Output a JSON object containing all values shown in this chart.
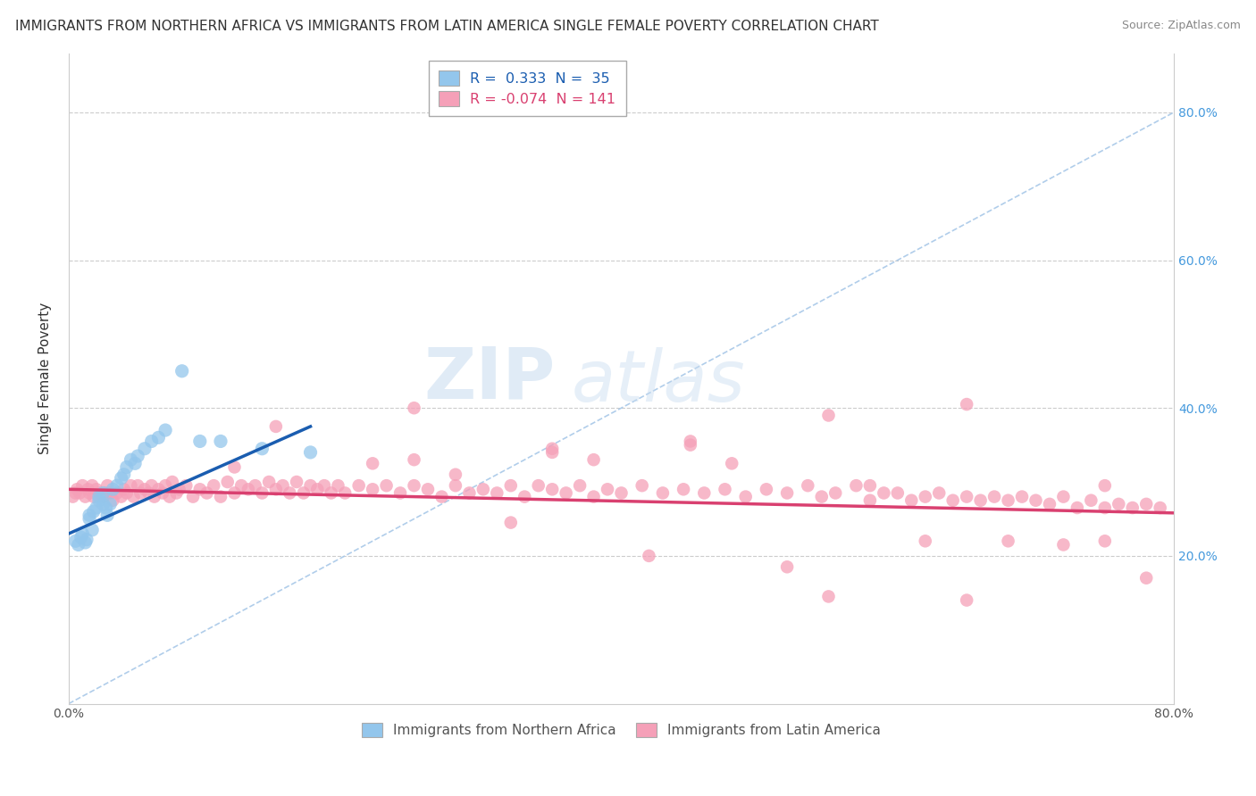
{
  "title": "IMMIGRANTS FROM NORTHERN AFRICA VS IMMIGRANTS FROM LATIN AMERICA SINGLE FEMALE POVERTY CORRELATION CHART",
  "source": "Source: ZipAtlas.com",
  "ylabel": "Single Female Poverty",
  "xlim": [
    0.0,
    0.8
  ],
  "ylim": [
    0.0,
    0.88
  ],
  "blue_color": "#93C6EC",
  "pink_color": "#F5A0B8",
  "blue_line_color": "#1A5DB0",
  "pink_line_color": "#D94070",
  "dashed_color": "#A8C8E8",
  "watermark_zip": "ZIP",
  "watermark_atlas": "atlas",
  "title_fontsize": 11,
  "source_fontsize": 9,
  "blue_x": [
    0.005,
    0.007,
    0.009,
    0.01,
    0.012,
    0.013,
    0.015,
    0.015,
    0.017,
    0.018,
    0.02,
    0.022,
    0.022,
    0.025,
    0.025,
    0.027,
    0.028,
    0.03,
    0.032,
    0.035,
    0.038,
    0.04,
    0.042,
    0.045,
    0.048,
    0.05,
    0.055,
    0.06,
    0.065,
    0.07,
    0.082,
    0.095,
    0.11,
    0.14,
    0.175
  ],
  "blue_y": [
    0.22,
    0.215,
    0.225,
    0.23,
    0.218,
    0.222,
    0.25,
    0.255,
    0.235,
    0.26,
    0.265,
    0.275,
    0.28,
    0.285,
    0.27,
    0.265,
    0.255,
    0.27,
    0.29,
    0.295,
    0.305,
    0.31,
    0.32,
    0.33,
    0.325,
    0.335,
    0.345,
    0.355,
    0.36,
    0.37,
    0.45,
    0.355,
    0.355,
    0.345,
    0.34
  ],
  "blue_trendline_x": [
    0.0,
    0.175
  ],
  "blue_trendline_y": [
    0.23,
    0.375
  ],
  "pink_trendline_x": [
    0.0,
    0.8
  ],
  "pink_trendline_y": [
    0.29,
    0.258
  ],
  "pink_x": [
    0.003,
    0.005,
    0.006,
    0.008,
    0.01,
    0.012,
    0.014,
    0.015,
    0.017,
    0.018,
    0.02,
    0.022,
    0.025,
    0.027,
    0.028,
    0.03,
    0.032,
    0.035,
    0.038,
    0.04,
    0.042,
    0.045,
    0.047,
    0.05,
    0.052,
    0.055,
    0.058,
    0.06,
    0.062,
    0.065,
    0.068,
    0.07,
    0.073,
    0.075,
    0.078,
    0.08,
    0.085,
    0.09,
    0.095,
    0.1,
    0.105,
    0.11,
    0.115,
    0.12,
    0.125,
    0.13,
    0.135,
    0.14,
    0.145,
    0.15,
    0.155,
    0.16,
    0.165,
    0.17,
    0.175,
    0.18,
    0.185,
    0.19,
    0.195,
    0.2,
    0.21,
    0.22,
    0.23,
    0.24,
    0.25,
    0.26,
    0.27,
    0.28,
    0.29,
    0.3,
    0.31,
    0.32,
    0.33,
    0.34,
    0.35,
    0.36,
    0.37,
    0.38,
    0.39,
    0.4,
    0.415,
    0.43,
    0.445,
    0.46,
    0.475,
    0.49,
    0.505,
    0.52,
    0.535,
    0.545,
    0.555,
    0.57,
    0.58,
    0.59,
    0.6,
    0.61,
    0.62,
    0.63,
    0.64,
    0.65,
    0.66,
    0.67,
    0.68,
    0.69,
    0.7,
    0.71,
    0.72,
    0.73,
    0.74,
    0.75,
    0.76,
    0.77,
    0.78,
    0.79,
    0.25,
    0.35,
    0.45,
    0.55,
    0.65,
    0.75,
    0.28,
    0.38,
    0.48,
    0.58,
    0.68,
    0.78,
    0.15,
    0.25,
    0.35,
    0.45,
    0.55,
    0.65,
    0.75,
    0.12,
    0.22,
    0.32,
    0.42,
    0.52,
    0.62,
    0.72
  ],
  "pink_y": [
    0.28,
    0.285,
    0.29,
    0.285,
    0.295,
    0.28,
    0.29,
    0.285,
    0.295,
    0.28,
    0.29,
    0.285,
    0.28,
    0.285,
    0.295,
    0.285,
    0.275,
    0.285,
    0.28,
    0.29,
    0.285,
    0.295,
    0.28,
    0.295,
    0.285,
    0.29,
    0.285,
    0.295,
    0.28,
    0.29,
    0.285,
    0.295,
    0.28,
    0.3,
    0.285,
    0.29,
    0.295,
    0.28,
    0.29,
    0.285,
    0.295,
    0.28,
    0.3,
    0.285,
    0.295,
    0.29,
    0.295,
    0.285,
    0.3,
    0.29,
    0.295,
    0.285,
    0.3,
    0.285,
    0.295,
    0.29,
    0.295,
    0.285,
    0.295,
    0.285,
    0.295,
    0.29,
    0.295,
    0.285,
    0.295,
    0.29,
    0.28,
    0.295,
    0.285,
    0.29,
    0.285,
    0.295,
    0.28,
    0.295,
    0.29,
    0.285,
    0.295,
    0.28,
    0.29,
    0.285,
    0.295,
    0.285,
    0.29,
    0.285,
    0.29,
    0.28,
    0.29,
    0.285,
    0.295,
    0.28,
    0.285,
    0.295,
    0.275,
    0.285,
    0.285,
    0.275,
    0.28,
    0.285,
    0.275,
    0.28,
    0.275,
    0.28,
    0.275,
    0.28,
    0.275,
    0.27,
    0.28,
    0.265,
    0.275,
    0.265,
    0.27,
    0.265,
    0.27,
    0.265,
    0.33,
    0.34,
    0.355,
    0.39,
    0.405,
    0.295,
    0.31,
    0.33,
    0.325,
    0.295,
    0.22,
    0.17,
    0.375,
    0.4,
    0.345,
    0.35,
    0.145,
    0.14,
    0.22,
    0.32,
    0.325,
    0.245,
    0.2,
    0.185,
    0.22,
    0.215
  ]
}
